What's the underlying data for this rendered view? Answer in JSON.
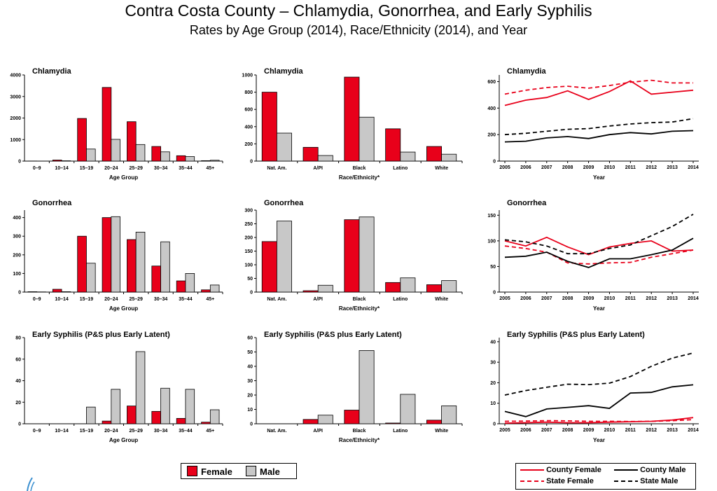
{
  "title": "Contra Costa County – Chlamydia, Gonorrhea, and Early Syphilis",
  "subtitle": "Rates by Age Group (2014), Race/Ethnicity (2014), and Year",
  "colors": {
    "female": "#e8001a",
    "male": "#c8c8c8",
    "county_female": "#e8001a",
    "state_female": "#e8001a",
    "county_male": "#000000",
    "state_male": "#000000"
  },
  "legend_bars": {
    "female": "Female",
    "male": "Male"
  },
  "legend_lines": {
    "county_female": "County Female",
    "county_male": "County Male",
    "state_female": "State Female",
    "state_male": "State Male"
  },
  "chart_data": [
    {
      "id": "age-chlamydia",
      "type": "bar",
      "title": "Chlamydia",
      "xlabel": "Age Group",
      "ylabel": "",
      "categories": [
        "0–9",
        "10–14",
        "15–19",
        "20–24",
        "25–29",
        "30–34",
        "35–44",
        "45+"
      ],
      "ylim": [
        0,
        4000
      ],
      "yticks": [
        0,
        1000,
        2000,
        3000,
        4000
      ],
      "series": [
        {
          "name": "Female",
          "values": [
            5,
            50,
            1980,
            3420,
            1830,
            680,
            250,
            20
          ]
        },
        {
          "name": "Male",
          "values": [
            2,
            15,
            560,
            1010,
            770,
            430,
            210,
            40
          ]
        }
      ]
    },
    {
      "id": "race-chlamydia",
      "type": "bar",
      "title": "Chlamydia",
      "xlabel": "Race/Ethnicity*",
      "ylabel": "",
      "categories": [
        "Nat. Am.",
        "A/PI",
        "Black",
        "Latino",
        "White"
      ],
      "ylim": [
        0,
        1000
      ],
      "yticks": [
        0,
        200,
        400,
        600,
        800,
        1000
      ],
      "series": [
        {
          "name": "Female",
          "values": [
            800,
            160,
            975,
            375,
            170
          ]
        },
        {
          "name": "Male",
          "values": [
            325,
            65,
            510,
            105,
            80
          ]
        }
      ]
    },
    {
      "id": "year-chlamydia",
      "type": "line",
      "title": "Chlamydia",
      "xlabel": "Year",
      "ylabel": "",
      "x": [
        2005,
        2006,
        2007,
        2008,
        2009,
        2010,
        2011,
        2012,
        2013,
        2014
      ],
      "ylim": [
        0,
        650
      ],
      "yticks": [
        0,
        200,
        400,
        600
      ],
      "series": [
        {
          "name": "County Female",
          "dashed": false,
          "values": [
            420,
            460,
            480,
            530,
            465,
            525,
            605,
            505,
            520,
            535
          ]
        },
        {
          "name": "State Female",
          "dashed": true,
          "values": [
            505,
            535,
            555,
            565,
            550,
            570,
            595,
            610,
            590,
            590
          ]
        },
        {
          "name": "County Male",
          "dashed": false,
          "values": [
            145,
            150,
            175,
            185,
            170,
            200,
            215,
            205,
            225,
            230
          ]
        },
        {
          "name": "State Male",
          "dashed": true,
          "values": [
            200,
            210,
            225,
            240,
            245,
            265,
            280,
            290,
            295,
            320
          ]
        }
      ]
    },
    {
      "id": "age-gonorrhea",
      "type": "bar",
      "title": "Gonorrhea",
      "xlabel": "Age Group",
      "ylabel": "",
      "categories": [
        "0–9",
        "10–14",
        "15–19",
        "20–24",
        "25–29",
        "30–34",
        "35–44",
        "45+"
      ],
      "ylim": [
        0,
        440
      ],
      "yticks": [
        0,
        100,
        200,
        300,
        400
      ],
      "series": [
        {
          "name": "Female",
          "values": [
            2,
            15,
            300,
            400,
            282,
            140,
            60,
            12
          ]
        },
        {
          "name": "Male",
          "values": [
            1,
            2,
            155,
            405,
            322,
            270,
            100,
            38
          ]
        }
      ]
    },
    {
      "id": "race-gonorrhea",
      "type": "bar",
      "title": "Gonorrhea",
      "xlabel": "Race/Ethnicity*",
      "ylabel": "",
      "categories": [
        "Nat. Am.",
        "A/PI",
        "Black",
        "Latino",
        "White"
      ],
      "ylim": [
        0,
        300
      ],
      "yticks": [
        0,
        50,
        100,
        150,
        200,
        250,
        300
      ],
      "series": [
        {
          "name": "Female",
          "values": [
            185,
            5,
            265,
            35,
            27
          ]
        },
        {
          "name": "Male",
          "values": [
            260,
            25,
            275,
            52,
            42
          ]
        }
      ]
    },
    {
      "id": "year-gonorrhea",
      "type": "line",
      "title": "Gonorrhea",
      "xlabel": "Year",
      "ylabel": "",
      "x": [
        2005,
        2006,
        2007,
        2008,
        2009,
        2010,
        2011,
        2012,
        2013,
        2014
      ],
      "ylim": [
        0,
        160
      ],
      "yticks": [
        0,
        50,
        100,
        150
      ],
      "series": [
        {
          "name": "County Female",
          "dashed": false,
          "values": [
            100,
            90,
            107,
            88,
            73,
            88,
            95,
            100,
            80,
            82
          ]
        },
        {
          "name": "State Female",
          "dashed": true,
          "values": [
            90,
            85,
            78,
            57,
            55,
            57,
            58,
            68,
            75,
            82
          ]
        },
        {
          "name": "County Male",
          "dashed": false,
          "values": [
            68,
            70,
            78,
            60,
            48,
            65,
            65,
            73,
            82,
            105
          ]
        },
        {
          "name": "State Male",
          "dashed": true,
          "values": [
            102,
            98,
            90,
            75,
            75,
            85,
            92,
            110,
            128,
            152
          ]
        }
      ]
    },
    {
      "id": "age-syphilis",
      "type": "bar",
      "title": "Early Syphilis (P&S plus Early Latent)",
      "xlabel": "Age Group",
      "ylabel": "",
      "categories": [
        "0–9",
        "10–14",
        "15–19",
        "20–24",
        "25–29",
        "30–34",
        "35–44",
        "45+"
      ],
      "ylim": [
        0,
        80
      ],
      "yticks": [
        0,
        20,
        40,
        60,
        80
      ],
      "series": [
        {
          "name": "Female",
          "values": [
            0,
            0,
            0,
            2.5,
            16.5,
            11.5,
            5,
            1.5
          ]
        },
        {
          "name": "Male",
          "values": [
            0,
            0,
            15.5,
            32,
            67,
            33,
            32,
            13
          ]
        }
      ]
    },
    {
      "id": "race-syphilis",
      "type": "bar",
      "title": "Early Syphilis (P&S plus Early Latent)",
      "xlabel": "Race/Ethnicity*",
      "ylabel": "",
      "categories": [
        "Nat. Am.",
        "A/PI",
        "Black",
        "Latino",
        "White"
      ],
      "ylim": [
        0,
        60
      ],
      "yticks": [
        0,
        10,
        20,
        30,
        40,
        50,
        60
      ],
      "series": [
        {
          "name": "Female",
          "values": [
            0,
            3,
            9.5,
            0.5,
            2.5
          ]
        },
        {
          "name": "Male",
          "values": [
            0,
            6,
            51,
            20.5,
            12.5
          ]
        }
      ]
    },
    {
      "id": "year-syphilis",
      "type": "line",
      "title": "Early Syphilis (P&S plus Early Latent)",
      "xlabel": "Year",
      "ylabel": "",
      "x": [
        2005,
        2006,
        2007,
        2008,
        2009,
        2010,
        2011,
        2012,
        2013,
        2014
      ],
      "ylim": [
        0,
        42
      ],
      "yticks": [
        0,
        10,
        20,
        30,
        40
      ],
      "series": [
        {
          "name": "County Female",
          "dashed": false,
          "values": [
            0.3,
            0.5,
            0.8,
            0.5,
            0.5,
            0.8,
            1,
            1.2,
            1.8,
            3
          ]
        },
        {
          "name": "State Female",
          "dashed": true,
          "values": [
            1.2,
            1.3,
            1.5,
            1.4,
            1.2,
            1.2,
            1.1,
            1.2,
            1.5,
            2
          ]
        },
        {
          "name": "County Male",
          "dashed": false,
          "values": [
            6,
            3.5,
            7.2,
            8,
            8.8,
            7.5,
            15,
            15.3,
            18,
            19
          ]
        },
        {
          "name": "State Male",
          "dashed": true,
          "values": [
            14,
            16.2,
            17.8,
            19.3,
            19.1,
            19.8,
            23,
            28,
            32,
            34.5
          ]
        }
      ]
    }
  ]
}
